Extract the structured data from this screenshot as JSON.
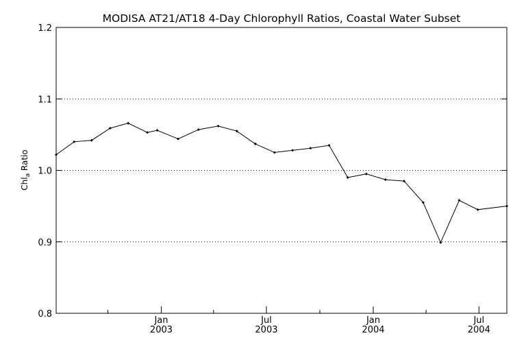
{
  "chart_data": {
    "type": "line",
    "title": "MODISA AT21/AT18 4-Day Chlorophyll Ratios, Coastal Water Subset",
    "ylabel_main": "Chl",
    "ylabel_sub": "a",
    "ylabel_rest": " Ratio",
    "ylim": [
      0.8,
      1.2
    ],
    "xlim": [
      "2002-07-04",
      "2004-08-18"
    ],
    "yticks": [
      {
        "value": 0.8,
        "label": "0.8"
      },
      {
        "value": 0.9,
        "label": "0.9"
      },
      {
        "value": 1.0,
        "label": "1.0"
      },
      {
        "value": 1.1,
        "label": "1.1"
      },
      {
        "value": 1.2,
        "label": "1.2"
      }
    ],
    "ygrid": [
      0.9,
      1.0,
      1.1
    ],
    "xticks_major": [
      {
        "date": "2003-01-01",
        "month": "Jan",
        "year": "2003"
      },
      {
        "date": "2003-07-01",
        "month": "Jul",
        "year": "2003"
      },
      {
        "date": "2004-01-01",
        "month": "Jan",
        "year": "2004"
      },
      {
        "date": "2004-07-01",
        "month": "Jul",
        "year": "2004"
      }
    ],
    "xticks_minor": [
      "2002-10-01",
      "2003-04-01",
      "2003-10-01",
      "2004-04-01"
    ],
    "series": [
      {
        "points": [
          {
            "x": "2002-07-04",
            "y": 1.022
          },
          {
            "x": "2002-08-04",
            "y": 1.04
          },
          {
            "x": "2002-09-03",
            "y": 1.042
          },
          {
            "x": "2002-10-05",
            "y": 1.059
          },
          {
            "x": "2002-11-05",
            "y": 1.066
          },
          {
            "x": "2002-12-08",
            "y": 1.053
          },
          {
            "x": "2002-12-25",
            "y": 1.056
          },
          {
            "x": "2003-01-30",
            "y": 1.044
          },
          {
            "x": "2003-03-06",
            "y": 1.057
          },
          {
            "x": "2003-04-09",
            "y": 1.062
          },
          {
            "x": "2003-05-11",
            "y": 1.055
          },
          {
            "x": "2003-06-12",
            "y": 1.037
          },
          {
            "x": "2003-07-15",
            "y": 1.025
          },
          {
            "x": "2003-08-15",
            "y": 1.028
          },
          {
            "x": "2003-09-15",
            "y": 1.031
          },
          {
            "x": "2003-10-17",
            "y": 1.035
          },
          {
            "x": "2003-11-18",
            "y": 0.99
          },
          {
            "x": "2003-12-20",
            "y": 0.995
          },
          {
            "x": "2004-01-22",
            "y": 0.987
          },
          {
            "x": "2004-02-23",
            "y": 0.985
          },
          {
            "x": "2004-03-27",
            "y": 0.955
          },
          {
            "x": "2004-04-26",
            "y": 0.899
          },
          {
            "x": "2004-05-28",
            "y": 0.958
          },
          {
            "x": "2004-06-29",
            "y": 0.945
          },
          {
            "x": "2004-08-18",
            "y": 0.95
          }
        ]
      }
    ]
  }
}
